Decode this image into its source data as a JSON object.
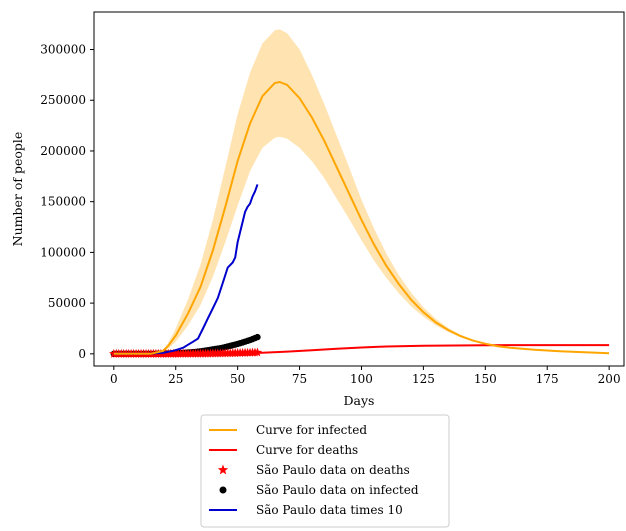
{
  "chart_data": {
    "type": "line",
    "xlabel": "Days",
    "ylabel": "Number of people",
    "xlim": [
      -8,
      206
    ],
    "ylim": [
      -12000,
      337000
    ],
    "x_ticks": [
      0,
      25,
      50,
      75,
      100,
      125,
      150,
      175,
      200
    ],
    "y_ticks": [
      0,
      50000,
      100000,
      150000,
      200000,
      250000,
      300000
    ],
    "x_tick_labels": [
      "0",
      "25",
      "50",
      "75",
      "100",
      "125",
      "150",
      "175",
      "200"
    ],
    "y_tick_labels": [
      "0",
      "50000",
      "100000",
      "150000",
      "200000",
      "250000",
      "300000"
    ],
    "grid": false,
    "legend_position": "below",
    "series": [
      {
        "name": "Curve for infected",
        "kind": "line",
        "color": "#ffa500",
        "x": [
          0,
          15,
          20,
          22,
          25,
          30,
          35,
          40,
          45,
          50,
          55,
          60,
          65,
          67,
          70,
          75,
          80,
          85,
          90,
          95,
          100,
          105,
          110,
          115,
          120,
          125,
          130,
          135,
          140,
          145,
          150,
          155,
          160,
          170,
          180,
          190,
          200
        ],
        "y": [
          0,
          0,
          3000,
          8000,
          18000,
          40000,
          66000,
          102000,
          145000,
          190000,
          227000,
          254000,
          267000,
          268000,
          265000,
          252000,
          233000,
          210000,
          184000,
          158000,
          132000,
          108000,
          87000,
          69000,
          53500,
          41000,
          31000,
          23500,
          17500,
          13000,
          10000,
          7500,
          6000,
          4000,
          2500,
          1500,
          500
        ],
        "band_lower": [
          0,
          0,
          2000,
          5000,
          12000,
          28000,
          48000,
          76000,
          110000,
          146000,
          180000,
          203000,
          213000,
          214000,
          212000,
          203000,
          190000,
          173000,
          153000,
          133000,
          112000,
          92000,
          75000,
          60000,
          47000,
          36500,
          28000,
          21500,
          16500,
          12500,
          9500,
          7200,
          5800,
          3800,
          2400,
          1400,
          500
        ],
        "band_upper": [
          0,
          0,
          4500,
          11000,
          25000,
          54000,
          88000,
          132000,
          184000,
          236000,
          277000,
          306000,
          319000,
          320000,
          316000,
          300000,
          275000,
          246000,
          215000,
          184000,
          152000,
          124000,
          99000,
          78000,
          60500,
          46000,
          34500,
          25500,
          19000,
          14000,
          10500,
          7800,
          6200,
          4200,
          2600,
          1600,
          500
        ]
      },
      {
        "name": "Curve for deaths",
        "kind": "line",
        "color": "#ff0000",
        "x": [
          0,
          20,
          30,
          40,
          50,
          60,
          70,
          80,
          90,
          100,
          110,
          125,
          150,
          175,
          200
        ],
        "y": [
          0,
          0,
          100,
          300,
          600,
          1000,
          2200,
          3600,
          5000,
          6200,
          7200,
          8000,
          8500,
          8600,
          8600
        ]
      },
      {
        "name": "São Paulo data on deaths",
        "kind": "scatter",
        "marker": "star",
        "color": "#ff0000",
        "x": [
          0,
          1,
          2,
          3,
          4,
          5,
          6,
          7,
          8,
          9,
          10,
          11,
          12,
          13,
          14,
          15,
          16,
          17,
          18,
          19,
          20,
          21,
          22,
          23,
          24,
          25,
          26,
          27,
          28,
          29,
          30,
          31,
          32,
          33,
          34,
          35,
          36,
          37,
          38,
          39,
          40,
          41,
          42,
          43,
          44,
          45,
          46,
          47,
          48,
          49,
          50,
          51,
          52,
          53,
          54,
          55,
          56,
          57,
          58
        ],
        "y": [
          0,
          0,
          0,
          0,
          0,
          0,
          0,
          0,
          0,
          0,
          0,
          0,
          0,
          0,
          0,
          0,
          0,
          0,
          0,
          0,
          0,
          0,
          10,
          20,
          30,
          40,
          50,
          60,
          70,
          80,
          100,
          120,
          140,
          160,
          180,
          200,
          230,
          260,
          290,
          320,
          360,
          400,
          440,
          480,
          520,
          570,
          620,
          670,
          720,
          770,
          830,
          880,
          940,
          1000,
          1060,
          1120,
          1180,
          1240,
          1300
        ]
      },
      {
        "name": "São Paulo data on infected",
        "kind": "scatter",
        "marker": "circle",
        "color": "#000000",
        "x": [
          0,
          1,
          2,
          3,
          4,
          5,
          6,
          7,
          8,
          9,
          10,
          11,
          12,
          13,
          14,
          15,
          16,
          17,
          18,
          19,
          20,
          21,
          22,
          23,
          24,
          25,
          26,
          27,
          28,
          29,
          30,
          31,
          32,
          33,
          34,
          35,
          36,
          37,
          38,
          39,
          40,
          41,
          42,
          43,
          44,
          45,
          46,
          47,
          48,
          49,
          50,
          51,
          52,
          53,
          54,
          55,
          56,
          57,
          58
        ],
        "y": [
          0,
          0,
          0,
          0,
          0,
          0,
          0,
          0,
          0,
          0,
          0,
          0,
          0,
          0,
          0,
          0,
          0,
          50,
          100,
          150,
          200,
          300,
          400,
          500,
          600,
          700,
          800,
          900,
          1000,
          1100,
          1300,
          1500,
          1700,
          1900,
          2200,
          2500,
          2800,
          3200,
          3600,
          4000,
          4400,
          4800,
          5200,
          5600,
          6100,
          6700,
          7300,
          7900,
          8500,
          9100,
          9800,
          10500,
          11200,
          12000,
          12800,
          13600,
          14500,
          15500,
          16500
        ]
      },
      {
        "name": "São Paulo data times 10",
        "kind": "line",
        "color": "#0000cc",
        "x": [
          0,
          5,
          10,
          15,
          17,
          20,
          22,
          24,
          26,
          28,
          30,
          32,
          34,
          36,
          38,
          40,
          42,
          44,
          46,
          48,
          49,
          50,
          51,
          52,
          53,
          54,
          55,
          56,
          57,
          58
        ],
        "y": [
          0,
          0,
          0,
          0,
          500,
          1000,
          2000,
          3000,
          4500,
          6000,
          9000,
          12000,
          15000,
          25000,
          35000,
          45000,
          55000,
          70000,
          85000,
          90000,
          95000,
          110000,
          120000,
          130000,
          140000,
          145000,
          148000,
          155000,
          160000,
          167000
        ]
      }
    ]
  }
}
